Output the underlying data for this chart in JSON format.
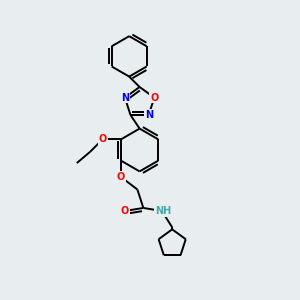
{
  "bg_color": "#e8edf0",
  "bond_color": "#000000",
  "bond_width": 1.4,
  "atom_colors": {
    "N": "#0000ff",
    "O": "#ff0000",
    "NH": "#44aaaa",
    "C": "#000000"
  }
}
